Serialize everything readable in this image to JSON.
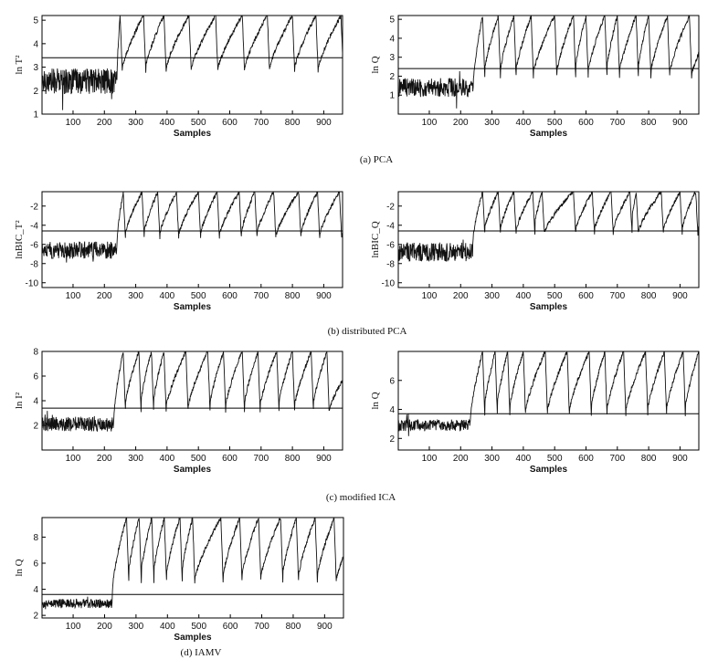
{
  "captions": {
    "a": "(a) PCA",
    "b": "(b) distributed PCA",
    "c": "(c) modified ICA",
    "d": "(d) IAMV"
  },
  "chart_data": [
    {
      "id": "pca-t2",
      "type": "line",
      "group": "a",
      "ylabel": "ln T²",
      "xlabel": "Samples",
      "xlim": [
        1,
        960
      ],
      "ylim": [
        1,
        5.2
      ],
      "xticks": [
        100,
        200,
        300,
        400,
        500,
        600,
        700,
        800,
        900
      ],
      "yticks": [
        1,
        2,
        3,
        4,
        5
      ],
      "control_limit": 3.4,
      "fault_onset": 240,
      "normal_level": 2.4,
      "normal_noise": 0.55,
      "peaks": [
        250,
        325,
        390,
        470,
        555,
        640,
        720,
        800,
        875,
        955
      ],
      "peak_level": 5.2,
      "trough_level": 2.5,
      "overall_trend": "normal operation roughly between 1 and 3.5, after sample ~240 repeated ramps reaching ~5"
    },
    {
      "id": "pca-q",
      "type": "line",
      "group": "a",
      "ylabel": "ln Q",
      "xlabel": "Samples",
      "xlim": [
        1,
        960
      ],
      "ylim": [
        0,
        5.2
      ],
      "xticks": [
        100,
        200,
        300,
        400,
        500,
        600,
        700,
        800,
        900
      ],
      "yticks": [
        1,
        2,
        3,
        4,
        5
      ],
      "control_limit": 2.4,
      "fault_onset": 240,
      "normal_level": 1.4,
      "normal_noise": 0.5,
      "peaks": [
        270,
        320,
        370,
        425,
        500,
        560,
        600,
        660,
        700,
        760,
        800,
        860,
        930
      ],
      "peak_level": 5.2,
      "trough_level": 1.5
    },
    {
      "id": "dpca-t2",
      "type": "line",
      "group": "b",
      "ylabel": "lnBIC_T²",
      "xlabel": "Samples",
      "xlim": [
        1,
        960
      ],
      "ylim": [
        -10.5,
        -0.5
      ],
      "xticks": [
        100,
        200,
        300,
        400,
        500,
        600,
        700,
        800,
        900
      ],
      "yticks": [
        -10,
        -8,
        -6,
        -4,
        -2
      ],
      "control_limit": -4.6,
      "fault_onset": 240,
      "normal_level": -6.6,
      "normal_noise": 0.9,
      "peaks": [
        260,
        320,
        370,
        430,
        500,
        560,
        630,
        680,
        740,
        820,
        880,
        950
      ],
      "peak_level": -0.5,
      "trough_level": -6.0
    },
    {
      "id": "dpca-q",
      "type": "line",
      "group": "b",
      "ylabel": "lnBIC_Q",
      "xlabel": "Samples",
      "xlim": [
        1,
        960
      ],
      "ylim": [
        -10.5,
        -0.5
      ],
      "xticks": [
        100,
        200,
        300,
        400,
        500,
        600,
        700,
        800,
        900
      ],
      "yticks": [
        -10,
        -8,
        -6,
        -4,
        -2
      ],
      "control_limit": -4.6,
      "fault_onset": 240,
      "normal_level": -6.8,
      "normal_noise": 1.0,
      "peaks": [
        270,
        320,
        370,
        430,
        460,
        560,
        620,
        680,
        740,
        760,
        840,
        900,
        950
      ],
      "peak_level": -0.5,
      "trough_level": -5.5
    },
    {
      "id": "mica-i2",
      "type": "line",
      "group": "c",
      "ylabel": "ln I²",
      "xlabel": "Samples",
      "xlim": [
        1,
        960
      ],
      "ylim": [
        0,
        8
      ],
      "xticks": [
        100,
        200,
        300,
        400,
        500,
        600,
        700,
        800,
        900
      ],
      "yticks": [
        2,
        4,
        6,
        8
      ],
      "control_limit": 3.4,
      "fault_onset": 230,
      "normal_level": 2.1,
      "normal_noise": 0.6,
      "peaks": [
        260,
        310,
        350,
        390,
        460,
        530,
        580,
        640,
        690,
        750,
        800,
        860,
        910
      ],
      "peak_level": 8.0,
      "trough_level": 2.5
    },
    {
      "id": "mica-q",
      "type": "line",
      "group": "c",
      "ylabel": "ln Q",
      "xlabel": "Samples",
      "xlim": [
        1,
        960
      ],
      "ylim": [
        1.2,
        8
      ],
      "xticks": [
        100,
        200,
        300,
        400,
        500,
        600,
        700,
        800,
        900
      ],
      "yticks": [
        2,
        4,
        6
      ],
      "control_limit": 3.7,
      "fault_onset": 230,
      "normal_level": 2.9,
      "normal_noise": 0.4,
      "peaks": [
        270,
        310,
        350,
        400,
        470,
        540,
        610,
        660,
        720,
        790,
        850,
        910,
        960
      ],
      "peak_level": 8.0,
      "trough_level": 3.0
    },
    {
      "id": "iamv-q",
      "type": "line",
      "group": "d",
      "ylabel": "ln Q",
      "xlabel": "Samples",
      "xlim": [
        1,
        960
      ],
      "ylim": [
        1.8,
        9.5
      ],
      "xticks": [
        100,
        200,
        300,
        400,
        500,
        600,
        700,
        800,
        900
      ],
      "yticks": [
        2,
        4,
        6,
        8
      ],
      "control_limit": 3.6,
      "fault_onset": 225,
      "normal_level": 2.9,
      "normal_noise": 0.35,
      "peaks": [
        270,
        310,
        350,
        390,
        440,
        480,
        570,
        630,
        690,
        760,
        810,
        870,
        930
      ],
      "peak_level": 9.5,
      "trough_level": 3.9
    }
  ]
}
